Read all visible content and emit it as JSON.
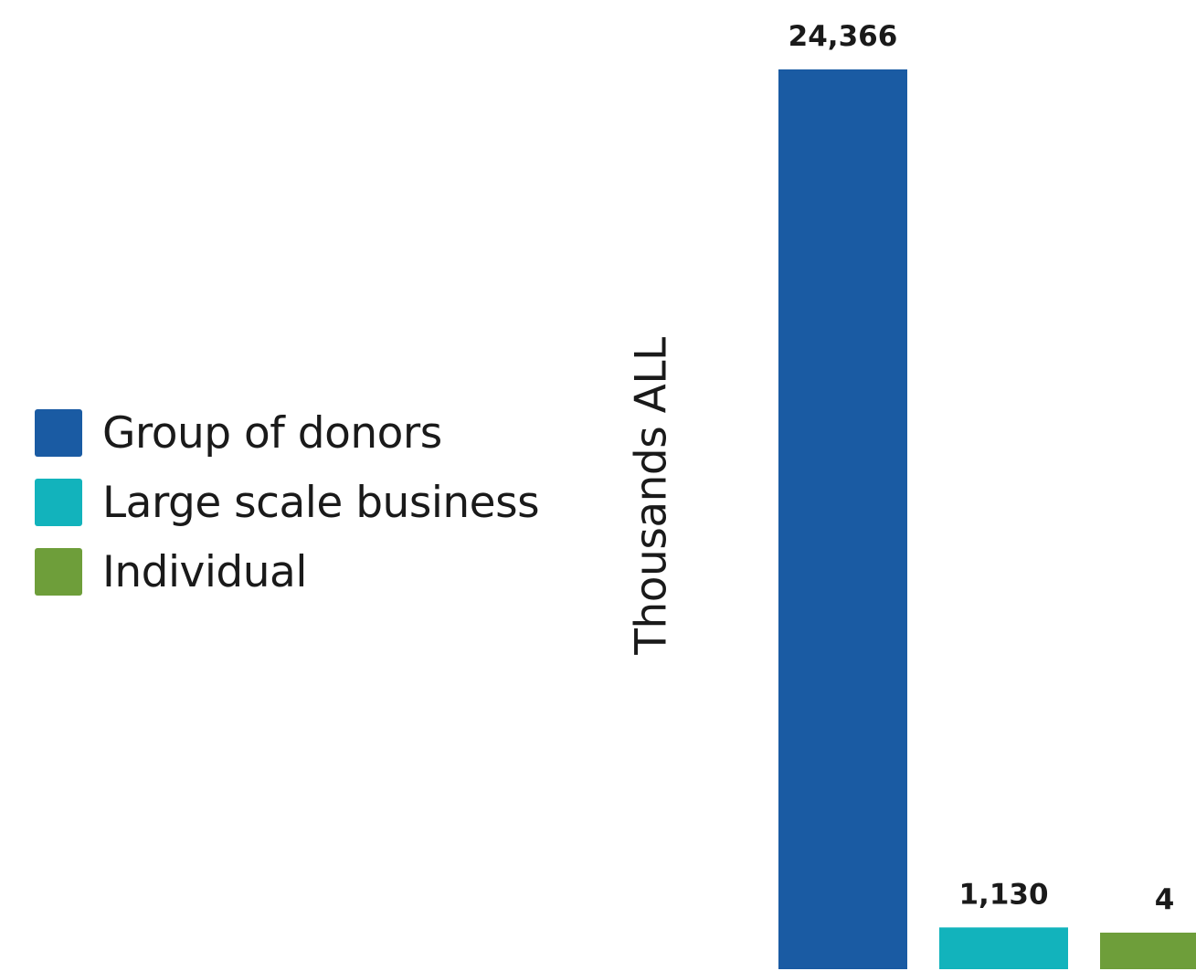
{
  "chart_data": {
    "type": "bar",
    "title": "",
    "xlabel": "",
    "ylabel": "Thousands ALL",
    "ylim": [
      0,
      24366
    ],
    "grid": false,
    "legend_position": "left",
    "categories": [
      "Group of donors",
      "Large scale business",
      "Individual"
    ],
    "values": [
      24366,
      1130,
      4
    ],
    "value_labels": [
      "24,366",
      "1,130",
      "4"
    ],
    "colors": [
      "#1a5ba3",
      "#12b3bc",
      "#6e9e3a"
    ],
    "legend": [
      {
        "label": "Group of donors",
        "color": "#1a5ba3"
      },
      {
        "label": "Large scale business",
        "color": "#12b3bc"
      },
      {
        "label": "Individual",
        "color": "#6e9e3a"
      }
    ]
  }
}
